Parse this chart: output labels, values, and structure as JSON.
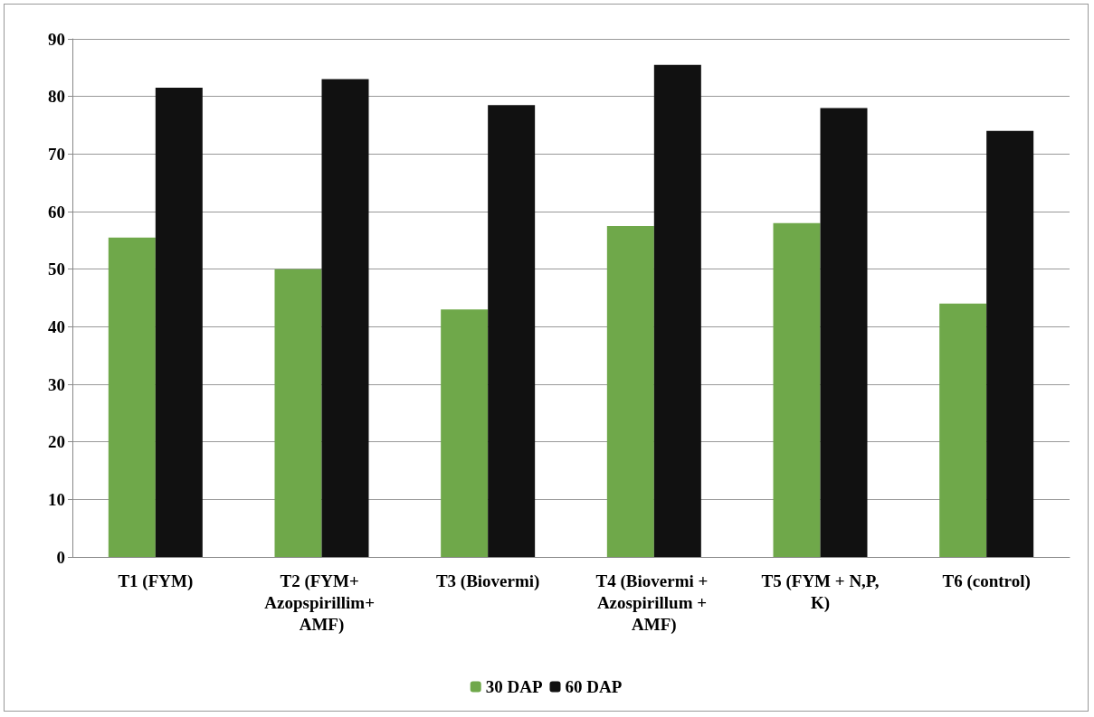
{
  "chart_data": {
    "type": "bar",
    "categories": [
      "T1 (FYM)",
      "T2 (FYM+ Azopspirillim+ AMF)",
      "T3 (Biovermi)",
      "T4 (Biovermi + Azospirillum + AMF)",
      "T5 (FYM + N,P,K)",
      "T6 (control)"
    ],
    "series": [
      {
        "name": "30 DAP",
        "color": "#6fa84a",
        "values": [
          55.5,
          50,
          43,
          57.5,
          58,
          44
        ]
      },
      {
        "name": "60 DAP",
        "color": "#111111",
        "values": [
          81.5,
          83,
          78.5,
          85.5,
          78,
          74
        ]
      }
    ],
    "ylim": [
      0,
      90
    ],
    "yticks": [
      0,
      10,
      20,
      30,
      40,
      50,
      60,
      70,
      80,
      90
    ],
    "grid": "y",
    "legend": "bottom"
  }
}
